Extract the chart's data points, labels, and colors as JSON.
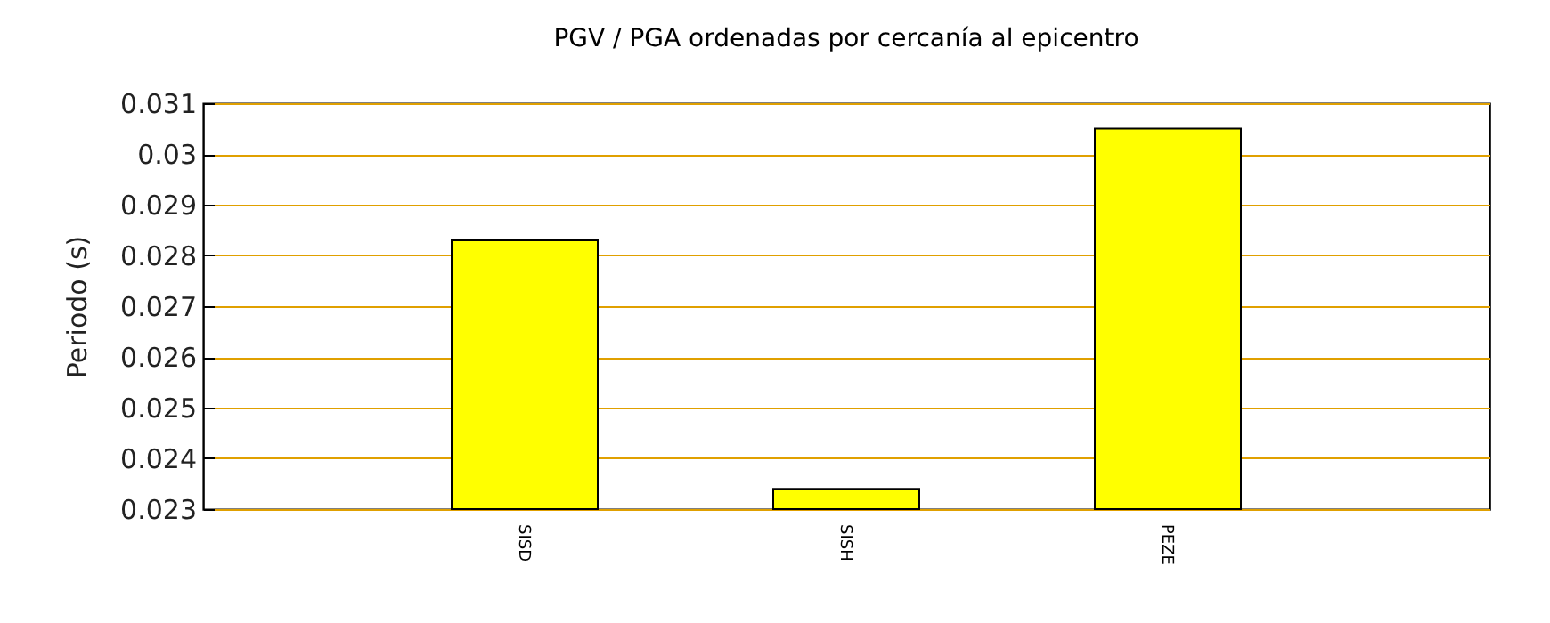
{
  "chart_data": {
    "type": "bar",
    "title": "PGV / PGA ordenadas por cercanía al epicentro",
    "ylabel": "Periodo (s)",
    "categories": [
      "SISD",
      "SISH",
      "PEZE"
    ],
    "values": [
      0.0283,
      0.0234,
      0.0305
    ],
    "color": "#ffff00",
    "ylim": [
      0.023,
      0.031
    ],
    "yticks": [
      0.023,
      0.024,
      0.025,
      0.026,
      0.027,
      0.028,
      0.029,
      0.03,
      0.031
    ],
    "grid": true
  }
}
